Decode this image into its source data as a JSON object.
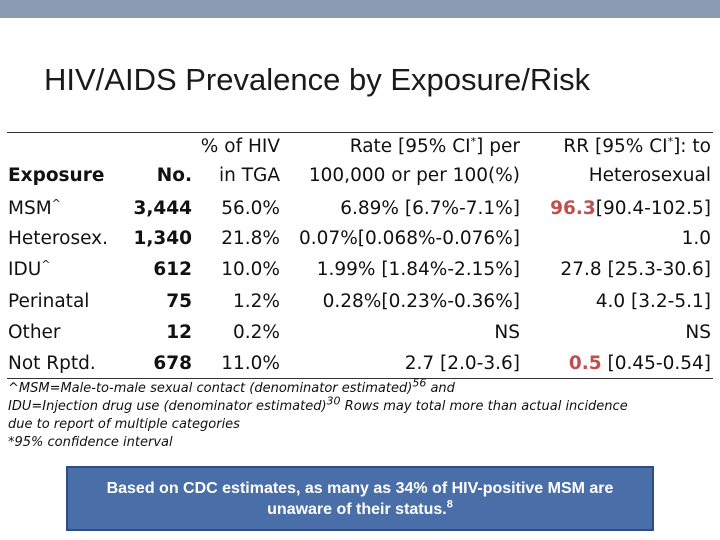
{
  "slide": {
    "title": "HIV/AIDS Prevalence by Exposure/Risk"
  },
  "table": {
    "headers": {
      "exposure": "Exposure",
      "no": "No.",
      "pct_line1": "% of HIV",
      "pct_line2": "in TGA",
      "rate_line1": "Rate [95% CI",
      "rate_sup": "*",
      "rate_line1_end": "] per",
      "rate_line2": "100,000 or per 100(%)",
      "rr_line1": "RR [95% CI",
      "rr_sup": "*",
      "rr_line1_end": "]: to",
      "rr_line2": "Heterosexual"
    },
    "rows": [
      {
        "exposure": "MSM",
        "exposure_sup": "^",
        "no": "3,444",
        "pct": "56.0%",
        "rate": "6.89% [6.7%-7.1%]",
        "rr_value": "96.3",
        "rr_ci": "[90.4-102.5]"
      },
      {
        "exposure": "Heterosex.",
        "no": "1,340",
        "pct": "21.8%",
        "rate": "0.07%[0.068%-0.076%]",
        "rr": "1.0"
      },
      {
        "exposure": "IDU",
        "exposure_sup": "^",
        "no": "612",
        "pct": "10.0%",
        "rate": "1.99% [1.84%-2.15%]",
        "rr": "27.8 [25.3-30.6]"
      },
      {
        "exposure": "Perinatal",
        "no": "75",
        "pct": "1.2%",
        "rate": "0.28%[0.23%-0.36%]",
        "rr": "4.0 [3.2-5.1]"
      },
      {
        "exposure": "Other",
        "no": "12",
        "pct": "0.2%",
        "rate": "NS",
        "rr": "NS"
      },
      {
        "exposure": "Not Rptd.",
        "no": "678",
        "pct": "11.0%",
        "rate": "2.7 [2.0-3.6]",
        "rr_value": "0.5",
        "rr_ci": "[0.45-0.54]"
      }
    ]
  },
  "footnotes": {
    "line1": "^MSM=Male-to-male sexual contact (denominator estimated)",
    "line1_sup": "56",
    "line1_end": " and",
    "line2": "IDU=Injection drug use (denominator estimated)",
    "line2_sup": "30",
    "line2_end": "   Rows may total more than actual incidence",
    "line3": "due to report of multiple categories",
    "line4": "*95% confidence interval"
  },
  "callout": {
    "line1": "Based on CDC estimates, as many as 34% of HIV-positive MSM are",
    "line2": "unaware of their status.",
    "line2_sup": "8"
  },
  "colors": {
    "highlight": "#c0504d",
    "callout_bg": "#4a6fa8",
    "topbar": "#8a9bb3"
  }
}
